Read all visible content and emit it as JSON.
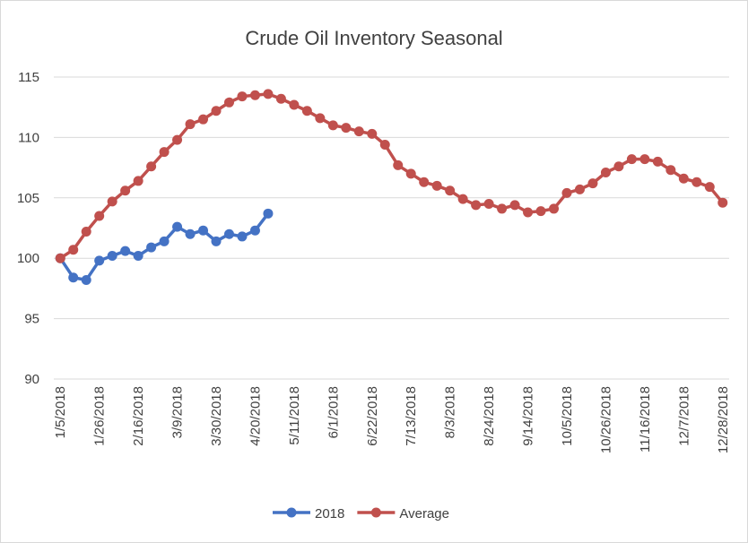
{
  "chart_data": {
    "type": "line",
    "title": "Crude Oil Inventory Seasonal",
    "categories": [
      "1/5/2018",
      null,
      null,
      "1/26/2018",
      null,
      null,
      "2/16/2018",
      null,
      null,
      "3/9/2018",
      null,
      null,
      "3/30/2018",
      null,
      null,
      "4/20/2018",
      null,
      null,
      "5/11/2018",
      null,
      null,
      "6/1/2018",
      null,
      null,
      "6/22/2018",
      null,
      null,
      "7/13/2018",
      null,
      null,
      "8/3/2018",
      null,
      null,
      "8/24/2018",
      null,
      null,
      "9/14/2018",
      null,
      null,
      "10/5/2018",
      null,
      null,
      "10/26/2018",
      null,
      null,
      "11/16/2018",
      null,
      null,
      "12/7/2018",
      null,
      null,
      "12/28/2018"
    ],
    "series": [
      {
        "name": "2018",
        "color": "#4472c4",
        "values": [
          100,
          98.4,
          98.2,
          99.8,
          100.2,
          100.6,
          100.2,
          100.9,
          101.4,
          102.6,
          102.0,
          102.3,
          101.4,
          102.0,
          101.8,
          102.3,
          103.7,
          null,
          null,
          null,
          null,
          null,
          null,
          null,
          null,
          null,
          null,
          null,
          null,
          null,
          null,
          null,
          null,
          null,
          null,
          null,
          null,
          null,
          null,
          null,
          null,
          null,
          null,
          null,
          null,
          null,
          null,
          null,
          null,
          null,
          null,
          null
        ]
      },
      {
        "name": "Average",
        "color": "#c0504d",
        "values": [
          100,
          100.7,
          102.2,
          103.5,
          104.7,
          105.6,
          106.4,
          107.6,
          108.8,
          109.8,
          111.1,
          111.5,
          112.2,
          112.9,
          113.4,
          113.5,
          113.6,
          113.2,
          112.7,
          112.2,
          111.6,
          111.0,
          110.8,
          110.5,
          110.3,
          109.4,
          107.7,
          107.0,
          106.3,
          106.0,
          105.6,
          104.9,
          104.4,
          104.5,
          104.1,
          104.4,
          103.8,
          103.9,
          104.1,
          105.4,
          105.7,
          106.2,
          107.1,
          107.6,
          108.2,
          108.2,
          108.0,
          107.3,
          106.6,
          106.3,
          105.9,
          104.6
        ]
      }
    ],
    "ylim": [
      90,
      115
    ],
    "yticks": [
      90,
      95,
      100,
      105,
      110,
      115
    ],
    "grid": true,
    "legend": "bottom"
  }
}
